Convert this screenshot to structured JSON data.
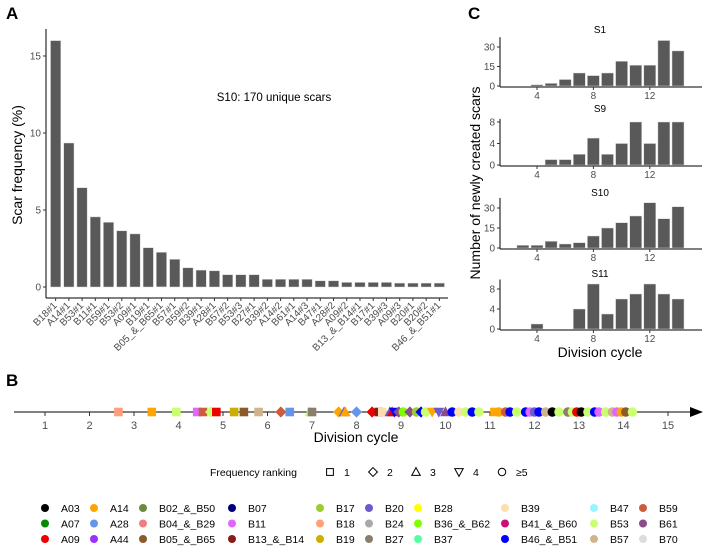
{
  "panels": {
    "a": "A",
    "b": "B",
    "c": "C"
  },
  "chart_data": [
    {
      "type": "bar",
      "panel": "A",
      "title": "",
      "annotation": "S10: 170 unique scars",
      "xlabel": "",
      "ylabel": "Scar frequency (%)",
      "ylim": [
        0,
        16.5
      ],
      "yticks": [
        0,
        5,
        10,
        15
      ],
      "grid": false,
      "categories": [
        "B18#1",
        "A14#1",
        "B53#1",
        "B11#1",
        "B59#1",
        "B53#2",
        "A09#1",
        "B19#1",
        "B05_&_B65#1",
        "B57#1",
        "B59#2",
        "B39#1",
        "A28#1",
        "B57#2",
        "B53#3",
        "B27#1",
        "B39#2",
        "A14#2",
        "B61#1",
        "A14#3",
        "B47#1",
        "A28#2",
        "A09#2",
        "B13_&_B14#1",
        "B17#1",
        "B39#3",
        "A09#3",
        "B20#1",
        "B20#2",
        "B46_&_B51#1"
      ],
      "values": [
        16.0,
        9.35,
        6.45,
        4.55,
        4.2,
        3.65,
        3.45,
        2.55,
        2.25,
        1.8,
        1.25,
        1.1,
        1.05,
        0.8,
        0.8,
        0.8,
        0.5,
        0.5,
        0.5,
        0.5,
        0.4,
        0.4,
        0.3,
        0.3,
        0.3,
        0.3,
        0.25,
        0.25,
        0.25,
        0.25
      ]
    },
    {
      "type": "scatter",
      "panel": "B",
      "xlabel": "Division cycle",
      "xlim": [
        0.5,
        15.8
      ],
      "xticks": [
        1,
        2,
        3,
        4,
        5,
        6,
        7,
        8,
        9,
        10,
        11,
        12,
        13,
        14,
        15
      ],
      "shape_legend_title": "Frequency ranking",
      "shape_legend": [
        {
          "shape": "square",
          "label": "1"
        },
        {
          "shape": "diamond",
          "label": "2"
        },
        {
          "shape": "triangle-up",
          "label": "3"
        },
        {
          "shape": "triangle-down",
          "label": "4"
        },
        {
          "shape": "circle",
          "label": "≥5"
        }
      ],
      "color_legend": [
        {
          "label": "A03",
          "color": "#000000"
        },
        {
          "label": "A07",
          "color": "#008b00"
        },
        {
          "label": "A09",
          "color": "#ee0000"
        },
        {
          "label": "A14",
          "color": "#ffa500"
        },
        {
          "label": "A28",
          "color": "#6495ed"
        },
        {
          "label": "A44",
          "color": "#9b30ff"
        },
        {
          "label": "B02_&_B50",
          "color": "#6e8b3d"
        },
        {
          "label": "B04_&_B29",
          "color": "#f08080"
        },
        {
          "label": "B05_&_B65",
          "color": "#8b5a2b"
        },
        {
          "label": "B07",
          "color": "#000080"
        },
        {
          "label": "B11",
          "color": "#e066ff"
        },
        {
          "label": "B13_&_B14",
          "color": "#8b1a1a"
        },
        {
          "label": "B17",
          "color": "#9acd32"
        },
        {
          "label": "B18",
          "color": "#ffa07a"
        },
        {
          "label": "B19",
          "color": "#cdad00"
        },
        {
          "label": "B20",
          "color": "#6a5acd"
        },
        {
          "label": "B24",
          "color": "#a9a9a9"
        },
        {
          "label": "B27",
          "color": "#8b7d6b"
        },
        {
          "label": "B28",
          "color": "#ffff00"
        },
        {
          "label": "B36_&_B62",
          "color": "#7fff00"
        },
        {
          "label": "B37",
          "color": "#54ff9f"
        },
        {
          "label": "B39",
          "color": "#ffdead"
        },
        {
          "label": "B41_&_B60",
          "color": "#cd1076"
        },
        {
          "label": "B46_&_B51",
          "color": "#0000ff"
        },
        {
          "label": "B47",
          "color": "#98f5ff"
        },
        {
          "label": "B53",
          "color": "#caff70"
        },
        {
          "label": "B57",
          "color": "#d2b48c"
        },
        {
          "label": "B59",
          "color": "#cd5c3c"
        },
        {
          "label": "B61",
          "color": "#8b4c8b"
        },
        {
          "label": "B70",
          "color": "#dcdcdc"
        }
      ],
      "points": [
        {
          "x": 2.65,
          "group": "B18",
          "shape": "square"
        },
        {
          "x": 3.4,
          "group": "A14",
          "shape": "square"
        },
        {
          "x": 3.95,
          "group": "B53",
          "shape": "square"
        },
        {
          "x": 4.42,
          "group": "B11",
          "shape": "square"
        },
        {
          "x": 4.55,
          "group": "B59",
          "shape": "square"
        },
        {
          "x": 4.72,
          "group": "B53",
          "shape": "diamond"
        },
        {
          "x": 4.85,
          "group": "A09",
          "shape": "square"
        },
        {
          "x": 5.25,
          "group": "B19",
          "shape": "square"
        },
        {
          "x": 5.47,
          "group": "B05_&_B65",
          "shape": "square"
        },
        {
          "x": 5.8,
          "group": "B57",
          "shape": "square"
        },
        {
          "x": 6.3,
          "group": "B59",
          "shape": "diamond"
        },
        {
          "x": 6.5,
          "group": "A28",
          "shape": "square"
        },
        {
          "x": 6.95,
          "group": "B53",
          "shape": "triangle-up"
        },
        {
          "x": 7.0,
          "group": "B27",
          "shape": "square"
        },
        {
          "x": 7.6,
          "group": "A14",
          "shape": "diamond"
        },
        {
          "x": 7.72,
          "group": "B20",
          "shape": "triangle-up"
        },
        {
          "x": 7.75,
          "group": "A14",
          "shape": "triangle-up"
        },
        {
          "x": 8.0,
          "group": "A28",
          "shape": "diamond"
        },
        {
          "x": 8.35,
          "group": "A09",
          "shape": "diamond"
        },
        {
          "x": 8.5,
          "group": "B13_&_B14",
          "shape": "square"
        },
        {
          "x": 8.58,
          "group": "B39",
          "shape": "square"
        },
        {
          "x": 8.75,
          "group": "B20",
          "shape": "triangle-up"
        },
        {
          "x": 8.8,
          "group": "A09",
          "shape": "triangle-up"
        },
        {
          "x": 8.85,
          "group": "B46_&_B51",
          "shape": "triangle-down"
        },
        {
          "x": 8.95,
          "group": "B61",
          "shape": "diamond"
        },
        {
          "x": 9.05,
          "group": "B36_&_B62",
          "shape": "circle"
        },
        {
          "x": 9.2,
          "group": "B61",
          "shape": "diamond"
        },
        {
          "x": 9.35,
          "group": "B17",
          "shape": "circle"
        },
        {
          "x": 9.45,
          "group": "B46_&_B51",
          "shape": "diamond"
        },
        {
          "x": 9.55,
          "group": "B53",
          "shape": "circle"
        },
        {
          "x": 9.7,
          "group": "A14",
          "shape": "triangle-down"
        },
        {
          "x": 9.85,
          "group": "B20",
          "shape": "triangle-down"
        },
        {
          "x": 10.0,
          "group": "B61",
          "shape": "triangle-up"
        },
        {
          "x": 10.15,
          "group": "B46_&_B51",
          "shape": "circle"
        },
        {
          "x": 10.3,
          "group": "B39",
          "shape": "circle"
        },
        {
          "x": 10.45,
          "group": "B53",
          "shape": "circle"
        },
        {
          "x": 10.6,
          "group": "B46_&_B51",
          "shape": "circle"
        },
        {
          "x": 10.75,
          "group": "B53",
          "shape": "circle"
        },
        {
          "x": 11.1,
          "group": "A14",
          "shape": "square"
        },
        {
          "x": 11.2,
          "group": "A14",
          "shape": "circle"
        },
        {
          "x": 11.35,
          "group": "B59",
          "shape": "circle"
        },
        {
          "x": 11.45,
          "group": "B46_&_B51",
          "shape": "circle"
        },
        {
          "x": 11.6,
          "group": "B53",
          "shape": "circle"
        },
        {
          "x": 11.8,
          "group": "B46_&_B51",
          "shape": "circle"
        },
        {
          "x": 11.9,
          "group": "B11",
          "shape": "circle"
        },
        {
          "x": 12.0,
          "group": "B20",
          "shape": "circle"
        },
        {
          "x": 12.1,
          "group": "B46_&_B51",
          "shape": "circle"
        },
        {
          "x": 12.25,
          "group": "B57",
          "shape": "circle"
        },
        {
          "x": 12.4,
          "group": "A03",
          "shape": "circle"
        },
        {
          "x": 12.55,
          "group": "B53",
          "shape": "circle"
        },
        {
          "x": 12.75,
          "group": "B27",
          "shape": "circle"
        },
        {
          "x": 12.85,
          "group": "B53",
          "shape": "circle"
        },
        {
          "x": 12.95,
          "group": "A09",
          "shape": "circle"
        },
        {
          "x": 13.05,
          "group": "A03",
          "shape": "circle"
        },
        {
          "x": 13.2,
          "group": "B53",
          "shape": "circle"
        },
        {
          "x": 13.35,
          "group": "B46_&_B51",
          "shape": "circle"
        },
        {
          "x": 13.45,
          "group": "B11",
          "shape": "circle"
        },
        {
          "x": 13.6,
          "group": "B53",
          "shape": "circle"
        },
        {
          "x": 13.75,
          "group": "B57",
          "shape": "circle"
        },
        {
          "x": 13.85,
          "group": "B11",
          "shape": "circle"
        },
        {
          "x": 13.95,
          "group": "A14",
          "shape": "circle"
        },
        {
          "x": 14.05,
          "group": "B05_&_B65",
          "shape": "circle"
        },
        {
          "x": 14.2,
          "group": "B53",
          "shape": "circle"
        }
      ]
    },
    {
      "type": "bar",
      "panel": "C",
      "xlabel": "Division cycle",
      "ylabel": "Number of newly created scars",
      "xticks": [
        4,
        8,
        12
      ],
      "xlim": [
        2.3,
        15.3
      ],
      "subplots": [
        {
          "title": "S1",
          "ylim": [
            0,
            36
          ],
          "yticks": [
            0,
            15,
            30
          ],
          "x": [
            4,
            5,
            6,
            7,
            8,
            9,
            10,
            11,
            12,
            13,
            14
          ],
          "values": [
            1,
            2,
            5,
            10,
            8,
            10,
            19,
            16,
            16,
            35,
            27
          ]
        },
        {
          "title": "S9",
          "ylim": [
            0,
            8.2
          ],
          "yticks": [
            0,
            4,
            8
          ],
          "x": [
            5,
            6,
            7,
            8,
            9,
            10,
            11,
            12,
            13,
            14
          ],
          "values": [
            1,
            1,
            2,
            5,
            2,
            4,
            8,
            4,
            8,
            8
          ]
        },
        {
          "title": "S10",
          "ylim": [
            0,
            36
          ],
          "yticks": [
            0,
            15,
            30
          ],
          "x": [
            3,
            4,
            5,
            6,
            7,
            8,
            9,
            10,
            11,
            12,
            13,
            14
          ],
          "values": [
            2,
            2,
            5,
            3,
            4,
            9,
            15,
            19,
            24,
            34,
            22,
            31
          ]
        },
        {
          "title": "S11",
          "ylim": [
            0,
            9.5
          ],
          "yticks": [
            0,
            4,
            8
          ],
          "x": [
            4,
            7,
            8,
            9,
            10,
            11,
            12,
            13,
            14
          ],
          "values": [
            1,
            4,
            9,
            3,
            6,
            7,
            9,
            7,
            6
          ]
        }
      ]
    }
  ]
}
